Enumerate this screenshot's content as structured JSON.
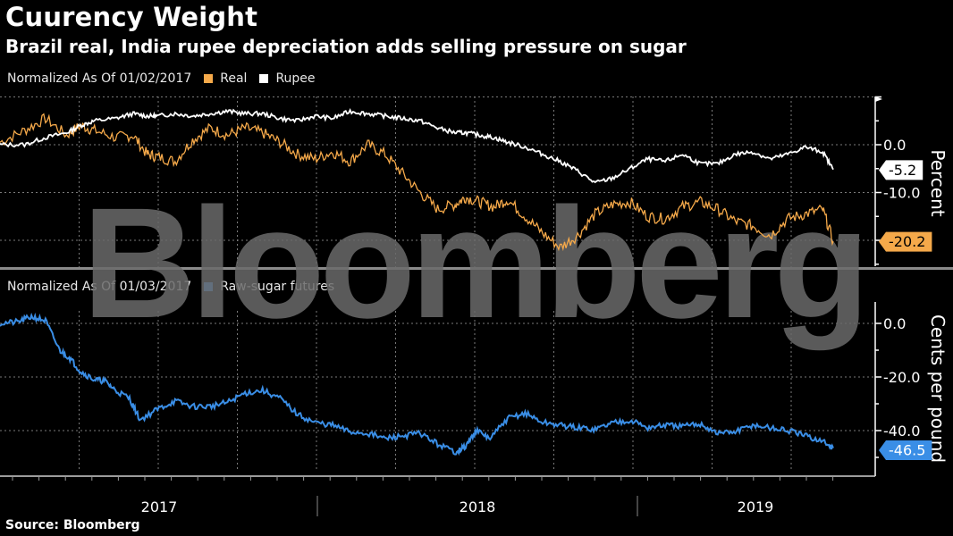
{
  "title": "Cuurency Weight",
  "subtitle": "Brazil real, India rupee depreciation adds selling pressure on sugar",
  "source": "Source: Bloomberg",
  "watermark": "Bloomberg",
  "colors": {
    "real": "#f5a94a",
    "rupee": "#ffffff",
    "sugar": "#3a8ee6",
    "grid": "#7a7a7a"
  },
  "chart_data": [
    {
      "type": "line",
      "legend_prefix": "Normalized As Of 01/02/2017",
      "ylabel": "Percent",
      "ylim": [
        -25,
        10
      ],
      "yticks": [
        0,
        -10
      ],
      "ytick_labels": [
        "0.0",
        "-10.0"
      ],
      "grid": true,
      "legend": "top-left",
      "x_range": [
        "2017-01",
        "2019-05"
      ],
      "x_years": [
        "2017",
        "2018",
        "2019"
      ],
      "series": [
        {
          "name": "Real",
          "last_value": "-20.2",
          "x": [
            2016.95,
            2017.02,
            2017.08,
            2017.14,
            2017.18,
            2017.22,
            2017.28,
            2017.33,
            2017.37,
            2017.4,
            2017.45,
            2017.5,
            2017.55,
            2017.6,
            2017.65,
            2017.7,
            2017.75,
            2017.8,
            2017.85,
            2017.9,
            2017.95,
            2018.0,
            2018.05,
            2018.1,
            2018.15,
            2018.2,
            2018.25,
            2018.28,
            2018.32,
            2018.36,
            2018.4,
            2018.45,
            2018.5,
            2018.55,
            2018.6,
            2018.65,
            2018.7,
            2018.75,
            2018.8,
            2018.85,
            2018.9,
            2018.95,
            2019.0,
            2019.05,
            2019.1,
            2019.15,
            2019.2,
            2019.25,
            2019.3,
            2019.33
          ],
          "values": [
            0.5,
            3.0,
            5.5,
            2.0,
            4.0,
            3.0,
            1.5,
            2.0,
            -2.0,
            -2.5,
            -3.5,
            1.0,
            3.5,
            2.0,
            3.5,
            2.5,
            0.5,
            -2.0,
            -3.0,
            -1.5,
            -3.5,
            0.0,
            -2.0,
            -6.0,
            -10.0,
            -13.5,
            -12.5,
            -11.0,
            -12.0,
            -13.0,
            -11.5,
            -15.0,
            -18.5,
            -21.5,
            -19.0,
            -14.5,
            -12.5,
            -12.0,
            -15.0,
            -15.5,
            -13.0,
            -12.0,
            -13.5,
            -16.0,
            -17.0,
            -19.0,
            -15.5,
            -14.5,
            -13.5,
            -20.2
          ]
        },
        {
          "name": "Rupee",
          "last_value": "-5.2",
          "x": [
            2016.95,
            2017.02,
            2017.08,
            2017.14,
            2017.18,
            2017.22,
            2017.28,
            2017.33,
            2017.37,
            2017.4,
            2017.45,
            2017.5,
            2017.55,
            2017.6,
            2017.65,
            2017.7,
            2017.75,
            2017.8,
            2017.85,
            2017.9,
            2017.95,
            2018.0,
            2018.05,
            2018.1,
            2018.15,
            2018.2,
            2018.25,
            2018.28,
            2018.32,
            2018.36,
            2018.4,
            2018.45,
            2018.5,
            2018.55,
            2018.6,
            2018.65,
            2018.7,
            2018.75,
            2018.8,
            2018.85,
            2018.9,
            2018.95,
            2019.0,
            2019.05,
            2019.1,
            2019.15,
            2019.2,
            2019.25,
            2019.3,
            2019.33
          ],
          "values": [
            0.0,
            0.0,
            1.5,
            2.5,
            4.0,
            5.0,
            5.5,
            6.5,
            6.0,
            6.0,
            6.5,
            6.0,
            6.5,
            7.0,
            6.5,
            6.5,
            5.5,
            5.0,
            6.0,
            5.5,
            7.0,
            6.5,
            6.0,
            5.5,
            5.0,
            3.5,
            2.5,
            2.5,
            2.0,
            1.5,
            0.5,
            -0.5,
            -2.0,
            -3.5,
            -5.5,
            -8.0,
            -7.0,
            -5.0,
            -3.0,
            -3.5,
            -2.0,
            -4.0,
            -4.0,
            -2.0,
            -1.5,
            -3.0,
            -2.0,
            -0.5,
            -1.5,
            -5.2
          ]
        }
      ]
    },
    {
      "type": "line",
      "legend_prefix": "Normalized As Of 01/03/2017",
      "ylabel": "Cents per pound",
      "ylim": [
        -55,
        10
      ],
      "yticks": [
        0,
        -20,
        -40
      ],
      "ytick_labels": [
        "0.0",
        "-20.0",
        "-40.0"
      ],
      "grid": true,
      "legend": "top-left",
      "series": [
        {
          "name": "Raw-sugar futures",
          "last_value": "-46.5",
          "x": [
            2016.95,
            2017.0,
            2017.04,
            2017.08,
            2017.12,
            2017.15,
            2017.18,
            2017.22,
            2017.25,
            2017.28,
            2017.32,
            2017.35,
            2017.4,
            2017.45,
            2017.5,
            2017.55,
            2017.6,
            2017.65,
            2017.7,
            2017.75,
            2017.8,
            2017.85,
            2017.9,
            2017.95,
            2018.0,
            2018.05,
            2018.1,
            2018.15,
            2018.2,
            2018.25,
            2018.28,
            2018.31,
            2018.35,
            2018.4,
            2018.45,
            2018.5,
            2018.55,
            2018.6,
            2018.65,
            2018.7,
            2018.75,
            2018.8,
            2018.85,
            2018.9,
            2018.95,
            2019.0,
            2019.05,
            2019.1,
            2019.15,
            2019.2,
            2019.25,
            2019.3,
            2019.33
          ],
          "values": [
            0.0,
            0.5,
            2.5,
            1.0,
            -10.0,
            -13.0,
            -18.0,
            -21.0,
            -21.5,
            -25.0,
            -28.0,
            -36.0,
            -32.0,
            -29.0,
            -31.0,
            -31.0,
            -29.5,
            -26.0,
            -25.0,
            -28.0,
            -34.0,
            -37.0,
            -38.0,
            -40.5,
            -41.0,
            -43.0,
            -42.0,
            -41.0,
            -45.0,
            -48.0,
            -46.0,
            -40.0,
            -43.0,
            -35.5,
            -33.5,
            -37.0,
            -38.0,
            -39.0,
            -39.5,
            -37.0,
            -36.0,
            -39.0,
            -38.0,
            -38.5,
            -37.5,
            -41.0,
            -40.5,
            -38.0,
            -39.0,
            -40.0,
            -42.0,
            -44.0,
            -46.5
          ]
        }
      ]
    }
  ]
}
